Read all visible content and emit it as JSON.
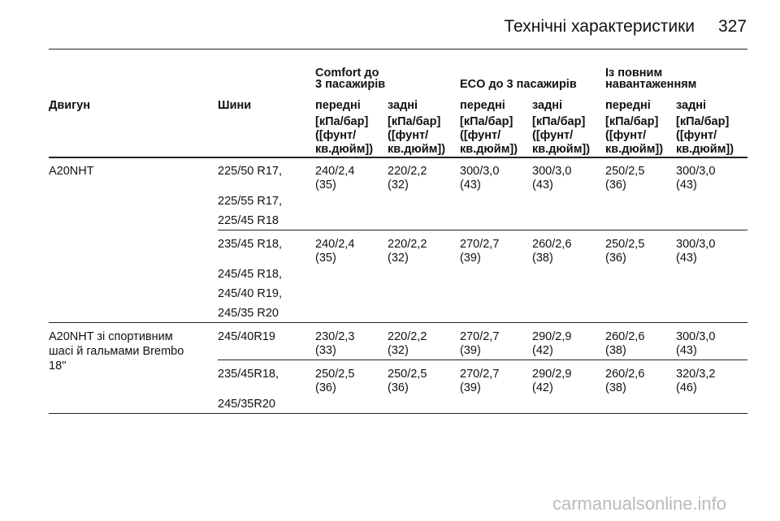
{
  "header": {
    "title": "Технічні характеристики",
    "page": "327"
  },
  "table": {
    "group_headers": [
      {
        "lines": [
          "Comfort до",
          "3 пасажирів"
        ]
      },
      {
        "lines": [
          "ECO до 3 пасажирів"
        ]
      },
      {
        "lines": [
          "Із повним",
          "навантаженням"
        ]
      }
    ],
    "columns": [
      "Двигун",
      "Шини",
      "передні",
      "задні",
      "передні",
      "задні",
      "передні",
      "задні"
    ],
    "units": [
      [
        "[кПа/бар]",
        "([фунт/",
        "кв.дюйм])"
      ],
      [
        "[кПа/бар]",
        "([фунт/",
        "кв.дюйм])"
      ],
      [
        "[кПа/бар]",
        "([фунт/",
        "кв.дюйм])"
      ],
      [
        "[кПа/бар]",
        "([фунт/",
        "кв.дюйм])"
      ],
      [
        "[кПа/бар]",
        "([фунт/",
        "кв.дюйм])"
      ],
      [
        "[кПа/бар]",
        "([фунт/",
        "кв.дюйм])"
      ]
    ],
    "rows": [
      {
        "engine": [
          "A20NHT"
        ],
        "subgroups": [
          {
            "tyres": [
              "225/50 R17,",
              "225/55 R17,",
              "225/45 R18"
            ],
            "values": [
              [
                "240/2,4",
                "(35)"
              ],
              [
                "220/2,2",
                "(32)"
              ],
              [
                "300/3,0",
                "(43)"
              ],
              [
                "300/3,0",
                "(43)"
              ],
              [
                "250/2,5",
                "(36)"
              ],
              [
                "300/3,0",
                "(43)"
              ]
            ]
          },
          {
            "tyres": [
              "235/45 R18,",
              "245/45 R18,",
              "245/40 R19,",
              "245/35 R20"
            ],
            "values": [
              [
                "240/2,4",
                "(35)"
              ],
              [
                "220/2,2",
                "(32)"
              ],
              [
                "270/2,7",
                "(39)"
              ],
              [
                "260/2,6",
                "(38)"
              ],
              [
                "250/2,5",
                "(36)"
              ],
              [
                "300/3,0",
                "(43)"
              ]
            ]
          }
        ]
      },
      {
        "engine": [
          "A20NHT зі спортивним",
          "шасі й гальмами Brembo",
          "18''"
        ],
        "subgroups": [
          {
            "tyres": [
              "245/40R19"
            ],
            "values": [
              [
                "230/2,3",
                "(33)"
              ],
              [
                "220/2,2",
                "(32)"
              ],
              [
                "270/2,7",
                "(39)"
              ],
              [
                "290/2,9",
                "(42)"
              ],
              [
                "260/2,6",
                "(38)"
              ],
              [
                "300/3,0",
                "(43)"
              ]
            ]
          },
          {
            "tyres": [
              "235/45R18,",
              "245/35R20"
            ],
            "values": [
              [
                "250/2,5",
                "(36)"
              ],
              [
                "250/2,5",
                "(36)"
              ],
              [
                "270/2,7",
                "(39)"
              ],
              [
                "290/2,9",
                "(42)"
              ],
              [
                "260/2,6",
                "(38)"
              ],
              [
                "320/3,2",
                "(46)"
              ]
            ]
          }
        ]
      }
    ]
  },
  "watermark": "carmanualsonline.info"
}
